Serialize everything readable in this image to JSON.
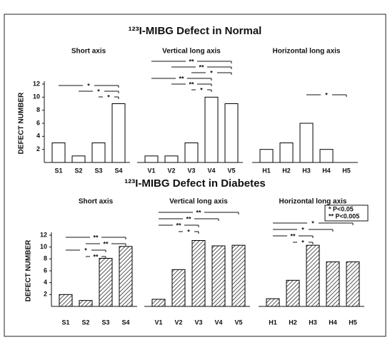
{
  "chart_data": [
    {
      "type": "bar",
      "title": "¹²³I-MIBG Defect in Normal",
      "y_label": "DEFECT NUMBER",
      "ylim": [
        0,
        12
      ],
      "yticks": [
        2,
        4,
        6,
        8,
        10,
        12
      ],
      "bar_style": "open",
      "color": "#000000",
      "groups": [
        {
          "name": "Short axis",
          "categories": [
            "S1",
            "S2",
            "S3",
            "S4"
          ],
          "values": [
            3,
            1,
            3,
            9
          ],
          "brackets": [
            {
              "between": [
                "S1",
                "S4"
              ],
              "label": "*"
            },
            {
              "between": [
                "S2",
                "S4"
              ],
              "label": "*"
            },
            {
              "between": [
                "S3",
                "S4"
              ],
              "label": "*"
            }
          ]
        },
        {
          "name": "Vertical long axis",
          "categories": [
            "V1",
            "V2",
            "V3",
            "V4",
            "V5"
          ],
          "values": [
            1,
            1,
            3,
            10,
            9
          ],
          "brackets": [
            {
              "between": [
                "V1",
                "V5"
              ],
              "label": "**"
            },
            {
              "between": [
                "V2",
                "V5"
              ],
              "label": "**"
            },
            {
              "between": [
                "V3",
                "V5"
              ],
              "label": "*"
            },
            {
              "between": [
                "V1",
                "V4"
              ],
              "label": "**"
            },
            {
              "between": [
                "V2",
                "V4"
              ],
              "label": "**"
            },
            {
              "between": [
                "V3",
                "V4"
              ],
              "label": "*"
            }
          ]
        },
        {
          "name": "Horizontal long axis",
          "categories": [
            "H1",
            "H2",
            "H3",
            "H4",
            "H5"
          ],
          "values": [
            2,
            3,
            6,
            2,
            0
          ],
          "brackets": [
            {
              "between": [
                "H3",
                "H5"
              ],
              "label": "*"
            }
          ]
        }
      ]
    },
    {
      "type": "bar",
      "title": "¹²³I-MIBG Defect in Diabetes",
      "y_label": "DEFECT NUMBER",
      "ylim": [
        0,
        12
      ],
      "yticks": [
        2,
        4,
        6,
        8,
        10,
        12
      ],
      "bar_style": "hatched",
      "color": "#000000",
      "legend": [
        "* P<0.05",
        "** P<0.005"
      ],
      "groups": [
        {
          "name": "Short axis",
          "categories": [
            "S1",
            "S2",
            "S3",
            "S4"
          ],
          "values": [
            2,
            1,
            8.1,
            10.1
          ],
          "brackets": [
            {
              "between": [
                "S1",
                "S4"
              ],
              "label": "**"
            },
            {
              "between": [
                "S2",
                "S4"
              ],
              "label": "**"
            },
            {
              "between": [
                "S1",
                "S3"
              ],
              "label": "*"
            },
            {
              "between": [
                "S2",
                "S3"
              ],
              "label": "**"
            }
          ]
        },
        {
          "name": "Vertical long axis",
          "categories": [
            "V1",
            "V2",
            "V3",
            "V4",
            "V5"
          ],
          "values": [
            1.2,
            6.2,
            11.1,
            10.2,
            10.3
          ],
          "brackets": [
            {
              "between": [
                "V1",
                "V5"
              ],
              "label": "**"
            },
            {
              "between": [
                "V1",
                "V4"
              ],
              "label": "**"
            },
            {
              "between": [
                "V1",
                "V3"
              ],
              "label": "**"
            },
            {
              "between": [
                "V2",
                "V3"
              ],
              "label": "*"
            }
          ]
        },
        {
          "name": "Horizontal long axis",
          "categories": [
            "H1",
            "H2",
            "H3",
            "H4",
            "H5"
          ],
          "values": [
            1.3,
            4.4,
            10.3,
            7.5,
            7.5
          ],
          "brackets": [
            {
              "between": [
                "H1",
                "H5"
              ],
              "label": "*"
            },
            {
              "between": [
                "H1",
                "H4"
              ],
              "label": "*"
            },
            {
              "between": [
                "H1",
                "H3"
              ],
              "label": "**"
            },
            {
              "between": [
                "H2",
                "H3"
              ],
              "label": "*"
            }
          ]
        }
      ]
    }
  ]
}
